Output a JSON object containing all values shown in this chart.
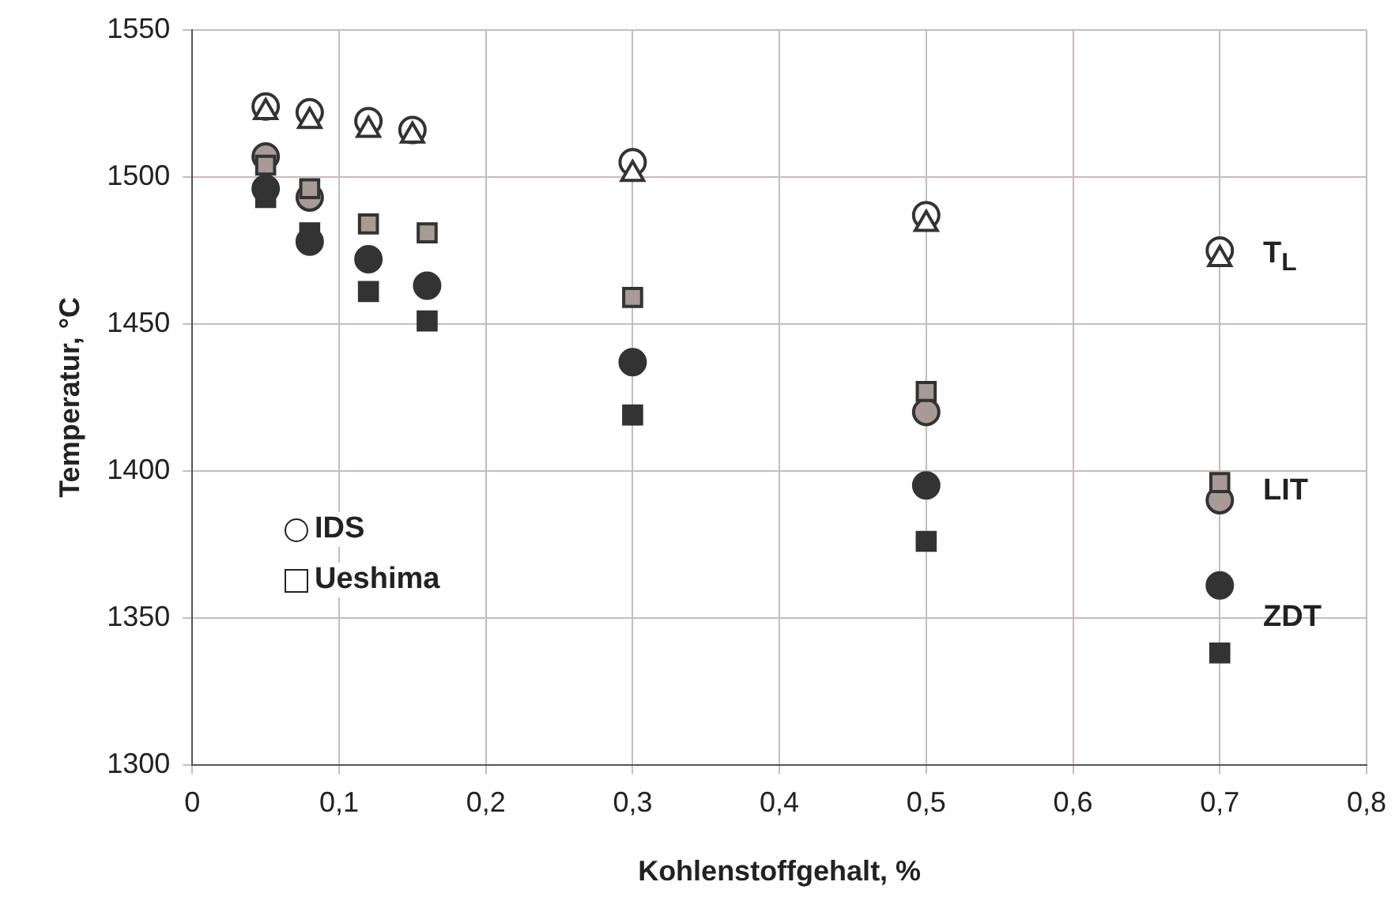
{
  "chart_data": {
    "type": "scatter",
    "xlabel": "Kohlenstoffgehalt, %",
    "ylabel": "Temperatur, °C",
    "xlim": [
      0,
      0.8
    ],
    "xticks": [
      0,
      {
        "value": 0.1,
        "label": "0,1"
      },
      {
        "value": 0.2,
        "label": "0,2"
      },
      {
        "value": 0.3,
        "label": "0,3"
      },
      {
        "value": 0.4,
        "label": "0,4"
      },
      {
        "value": 0.5,
        "label": "0,5"
      },
      {
        "value": 0.6,
        "label": "0,6"
      },
      {
        "value": 0.7,
        "label": "0,7"
      },
      {
        "value": 0.8,
        "label": "0,8"
      }
    ],
    "ylim": [
      1300,
      1550
    ],
    "yticks": [
      1300,
      1350,
      1400,
      1450,
      1500,
      1550
    ],
    "grid": true,
    "series": [
      {
        "marker": "circle",
        "color": "#ffffff",
        "x": [
          0.05,
          0.08,
          0.12,
          0.15,
          0.3,
          0.5,
          0.7
        ],
        "values": [
          1524,
          1522,
          1519,
          1516,
          1505,
          1487,
          1475
        ]
      },
      {
        "marker": "triangle",
        "color": "#ffffff",
        "x": [
          0.05,
          0.08,
          0.12,
          0.15,
          0.3,
          0.5,
          0.7
        ],
        "values": [
          1522,
          1519,
          1516,
          1514,
          1501,
          1484,
          1472
        ]
      },
      {
        "marker": "circle",
        "color": "#a89a96",
        "x": [
          0.05,
          0.08,
          0.12,
          0.16,
          0.3,
          0.5,
          0.7
        ],
        "values": [
          1507,
          1493,
          null,
          null,
          null,
          1420,
          1390
        ]
      },
      {
        "marker": "square",
        "color": "#a89a96",
        "x": [
          0.05,
          0.08,
          0.12,
          0.16,
          0.3,
          0.5,
          0.7
        ],
        "values": [
          1504,
          1496,
          1484,
          1481,
          1459,
          1427,
          1396
        ]
      },
      {
        "marker": "circle",
        "color": "#333333",
        "x": [
          0.05,
          0.08,
          0.12,
          0.16,
          0.3,
          0.5,
          0.7
        ],
        "values": [
          1496,
          1478,
          1472,
          1463,
          1437,
          1395,
          1361
        ]
      },
      {
        "marker": "square",
        "color": "#333333",
        "x": [
          0.05,
          0.08,
          0.12,
          0.16,
          0.3,
          0.5,
          0.7
        ],
        "values": [
          1493,
          1481,
          1461,
          1451,
          1419,
          1376,
          1338
        ]
      }
    ],
    "annotations": [
      "T$_{L}$",
      "LIT",
      "ZDT",
      "IDS",
      "Ueshima"
    ]
  }
}
